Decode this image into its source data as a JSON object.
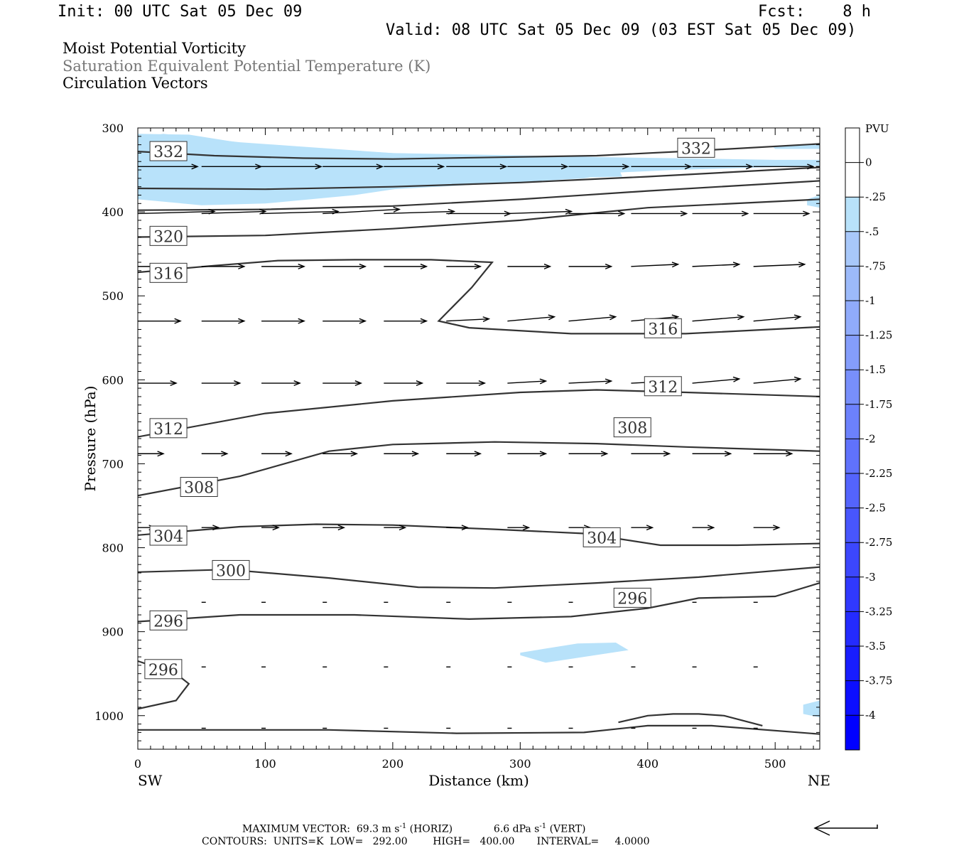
{
  "header": {
    "init": "Init: 00 UTC Sat 05 Dec 09",
    "fcst": "Fcst:    8 h",
    "valid": "Valid: 08 UTC Sat 05 Dec 09 (03 EST Sat 05 Dec 09)"
  },
  "titles": {
    "line1": "Moist Potential Vorticity",
    "line2": "Saturation Equivalent Potential Temperature (K)",
    "line3": "Circulation Vectors"
  },
  "footer": {
    "vector_prefix": "MAXIMUM VECTOR:",
    "horiz_value": "69.3 m s",
    "horiz_exp": "-1",
    "horiz_tag": "(HORIZ)",
    "vert_value": "6.6 dPa s",
    "vert_exp": "-1",
    "vert_tag": "(VERT)",
    "contours": "CONTOURS:  UNITS=K  LOW=   292.00        HIGH=   400.00       INTERVAL=     4.0000"
  },
  "chart_data": {
    "type": "cross-section",
    "xlabel": "Distance (km)",
    "ylabel": "Pressure (hPa)",
    "xlim": [
      0,
      535
    ],
    "ylim": [
      1040,
      300
    ],
    "x_ticks": [
      0,
      100,
      200,
      300,
      400,
      500
    ],
    "y_ticks": [
      300,
      400,
      500,
      600,
      700,
      800,
      900,
      1000
    ],
    "x_end_labels": {
      "left": "SW",
      "right": "NE"
    },
    "colorbar": {
      "unit": "PVU",
      "labels": [
        "0",
        "-.25",
        "-.5",
        "-.75",
        "-1",
        "-1.25",
        "-1.5",
        "-1.75",
        "-2",
        "-2.25",
        "-2.5",
        "-2.75",
        "-3",
        "-3.25",
        "-3.5",
        "-3.75",
        "-4"
      ],
      "levels": [
        0,
        -0.25,
        -0.5,
        -0.75,
        -1,
        -1.25,
        -1.5,
        -1.75,
        -2,
        -2.25,
        -2.5,
        -2.75,
        -3,
        -3.25,
        -3.5,
        -3.75,
        -4
      ]
    },
    "shading_color": "#b8e2fa",
    "shaded_regions": [
      {
        "x": [
          0,
          40,
          90,
          200,
          310,
          370,
          420,
          500,
          535,
          535,
          420,
          350,
          250,
          170,
          100,
          50,
          0
        ],
        "p": [
          307,
          308,
          320,
          330,
          333,
          335,
          336,
          338,
          338,
          345,
          350,
          355,
          362,
          380,
          390,
          392,
          385
        ]
      },
      {
        "x": [
          300,
          360,
          375,
          380,
          315,
          300
        ],
        "p": [
          352,
          347,
          340,
          358,
          360,
          356
        ]
      },
      {
        "x": [
          0,
          20,
          80,
          200,
          250,
          310,
          370,
          390,
          350,
          260,
          140,
          40,
          0
        ],
        "p": [
          312,
          307,
          317,
          330,
          332,
          337,
          340,
          350,
          360,
          368,
          378,
          385,
          385
        ]
      },
      {
        "x": [
          300,
          345,
          375,
          385,
          320,
          300
        ],
        "p": [
          925,
          914,
          913,
          922,
          937,
          928
        ]
      },
      {
        "x": [
          525,
          535,
          535,
          525
        ],
        "p": [
          385,
          380,
          395,
          392
        ]
      },
      {
        "x": [
          522,
          535,
          535,
          522
        ],
        "p": [
          987,
          982,
          1002,
          998
        ]
      },
      {
        "x": [
          498,
          535,
          535,
          500
        ],
        "p": [
          322,
          320,
          325,
          325
        ]
      }
    ],
    "contours": [
      {
        "level": 332,
        "label_pos": [
          [
            24,
            328
          ],
          [
            438,
            324
          ]
        ],
        "x": [
          0,
          60,
          130,
          200,
          280,
          360,
          440,
          535
        ],
        "p": [
          328,
          333,
          336,
          337,
          335,
          333,
          327,
          319
        ]
      },
      {
        "level": 328,
        "label_pos": [],
        "x": [
          0,
          100,
          200,
          300,
          400,
          535
        ],
        "p": [
          372,
          373,
          370,
          365,
          358,
          347
        ]
      },
      {
        "level": 324,
        "label_pos": [],
        "x": [
          0,
          100,
          200,
          300,
          400,
          535
        ],
        "p": [
          398,
          397,
          393,
          385,
          375,
          363
        ]
      },
      {
        "level": 320,
        "label_pos": [
          [
            24,
            429
          ]
        ],
        "x": [
          0,
          100,
          200,
          300,
          400,
          535
        ],
        "p": [
          430,
          428,
          420,
          410,
          395,
          385
        ]
      },
      {
        "level": 316,
        "label_pos": [
          [
            24,
            473
          ]
        ],
        "x": [
          0,
          60,
          110,
          170,
          230,
          278,
          262,
          236,
          260,
          340,
          430,
          535
        ],
        "p": [
          472,
          464,
          458,
          457,
          457,
          460,
          490,
          530,
          538,
          545,
          545,
          537
        ]
      },
      {
        "level": 316,
        "label_pos": [
          [
            412,
            539
          ]
        ],
        "x": [],
        "p": []
      },
      {
        "level": 312,
        "label_pos": [
          [
            24,
            658
          ],
          [
            412,
            608
          ]
        ],
        "x": [
          0,
          100,
          200,
          300,
          360,
          430,
          535
        ],
        "p": [
          668,
          640,
          625,
          615,
          612,
          615,
          620
        ]
      },
      {
        "level": 308,
        "label_pos": [
          [
            48,
            728
          ],
          [
            388,
            657
          ]
        ],
        "x": [
          0,
          80,
          150,
          200,
          280,
          360,
          430,
          535
        ],
        "p": [
          738,
          715,
          685,
          677,
          674,
          676,
          680,
          685
        ]
      },
      {
        "level": 304,
        "label_pos": [
          [
            24,
            786
          ],
          [
            364,
            788
          ]
        ],
        "x": [
          0,
          80,
          140,
          200,
          280,
          350,
          410,
          470,
          535
        ],
        "p": [
          785,
          775,
          772,
          773,
          778,
          783,
          797,
          797,
          795
        ]
      },
      {
        "level": 300,
        "label_pos": [
          [
            73,
            827
          ]
        ],
        "x": [
          0,
          70,
          150,
          220,
          280,
          360,
          440,
          535
        ],
        "p": [
          829,
          826,
          836,
          847,
          848,
          842,
          835,
          823
        ]
      },
      {
        "level": 296,
        "label_pos": [
          [
            24,
            887
          ],
          [
            388,
            860
          ]
        ],
        "x": [
          0,
          80,
          170,
          260,
          340,
          400,
          440,
          500,
          535
        ],
        "p": [
          888,
          880,
          880,
          885,
          882,
          872,
          860,
          858,
          842
        ]
      },
      {
        "level": 296,
        "label_pos": [
          [
            20,
            945
          ]
        ],
        "x": [
          0,
          30,
          40,
          30,
          0
        ],
        "p": [
          935,
          950,
          962,
          982,
          992
        ]
      },
      {
        "level": 292,
        "label_pos": [],
        "x": [
          0,
          150,
          250,
          350,
          400,
          450,
          535
        ],
        "p": [
          1017,
          1017,
          1021,
          1020,
          1012,
          1012,
          1022
        ]
      },
      {
        "level": 292,
        "label_pos": [],
        "x": [
          377,
          400,
          420,
          440,
          460,
          490
        ],
        "p": [
          1008,
          1000,
          998,
          998,
          1000,
          1012
        ]
      }
    ],
    "vector_rows": [
      {
        "p": 346,
        "x": [
          0,
          50,
          97,
          145,
          193,
          242,
          290,
          338,
          387,
          435,
          483,
          532
        ],
        "u": [
          28,
          28,
          28,
          28,
          28,
          28,
          28,
          28,
          28,
          28,
          28,
          28
        ],
        "w": [
          0,
          0,
          0,
          0,
          0,
          0,
          0,
          0,
          0,
          0,
          0,
          0
        ]
      },
      {
        "p": 402,
        "x": [
          0,
          50,
          97,
          145,
          193,
          242,
          290,
          338,
          387,
          435,
          483
        ],
        "u": [
          36,
          30,
          36,
          36,
          33,
          30,
          30,
          26,
          26,
          26,
          26
        ],
        "w": [
          1,
          1,
          1,
          2,
          1,
          0,
          1,
          0,
          0,
          0,
          0
        ]
      },
      {
        "p": 465,
        "x": [
          0,
          50,
          97,
          145,
          193,
          242,
          290,
          338,
          387,
          435,
          483
        ],
        "u": [
          20,
          20,
          20,
          20,
          20,
          16,
          20,
          20,
          22,
          22,
          24
        ],
        "w": [
          0,
          0,
          0,
          0,
          0,
          0,
          0,
          0,
          1,
          1,
          1
        ]
      },
      {
        "p": 530,
        "x": [
          0,
          50,
          97,
          145,
          193,
          242,
          290,
          338,
          387,
          435,
          483
        ],
        "u": [
          20,
          20,
          20,
          20,
          20,
          20,
          22,
          22,
          22,
          24,
          22
        ],
        "w": [
          0,
          0,
          0,
          0,
          0,
          1,
          2,
          2,
          2,
          2,
          2
        ]
      },
      {
        "p": 604,
        "x": [
          0,
          50,
          97,
          145,
          193,
          242,
          290,
          338,
          387,
          435,
          483
        ],
        "u": [
          18,
          18,
          18,
          18,
          18,
          18,
          18,
          20,
          20,
          22,
          22
        ],
        "w": [
          0,
          0,
          0,
          0,
          0,
          0,
          1,
          1,
          1,
          2,
          2
        ]
      },
      {
        "p": 688,
        "x": [
          0,
          50,
          97,
          145,
          193,
          242,
          290,
          338,
          387,
          435,
          483
        ],
        "u": [
          12,
          12,
          14,
          16,
          16,
          16,
          18,
          18,
          18,
          18,
          18
        ],
        "w": [
          0,
          0,
          0,
          0,
          0,
          0,
          0,
          0,
          0,
          0,
          0
        ]
      },
      {
        "p": 776,
        "x": [
          0,
          50,
          97,
          145,
          193,
          242,
          290,
          338,
          387,
          435,
          483
        ],
        "u": [
          8,
          8,
          8,
          10,
          10,
          10,
          10,
          10,
          10,
          10,
          12
        ],
        "w": [
          0,
          0,
          0,
          0,
          0,
          0,
          0,
          0,
          0,
          0,
          0
        ]
      },
      {
        "p": 865,
        "x": [
          50,
          97,
          145,
          193,
          242,
          290,
          338,
          387,
          435,
          483
        ],
        "u": [
          2,
          2,
          2,
          2,
          2,
          2,
          2,
          2,
          2,
          2
        ],
        "w": [
          0,
          0,
          0,
          0,
          0,
          0,
          0,
          0,
          0,
          0
        ]
      },
      {
        "p": 942,
        "x": [
          50,
          97,
          145,
          193,
          242,
          290,
          338,
          387,
          435,
          483
        ],
        "u": [
          2,
          2,
          2,
          2,
          2,
          2,
          2,
          2,
          2,
          2
        ],
        "w": [
          0,
          0,
          0,
          0,
          0,
          0,
          0,
          0,
          0,
          0
        ]
      },
      {
        "p": 1015,
        "x": [
          50,
          97,
          145,
          193,
          242,
          290,
          338,
          387,
          435,
          483
        ],
        "u": [
          2,
          2,
          2,
          2,
          2,
          2,
          2,
          2,
          2,
          2
        ],
        "w": [
          0,
          0,
          0,
          0,
          0,
          0,
          0,
          0,
          0,
          0
        ]
      }
    ],
    "reference_vector": {
      "direction": "left"
    }
  }
}
